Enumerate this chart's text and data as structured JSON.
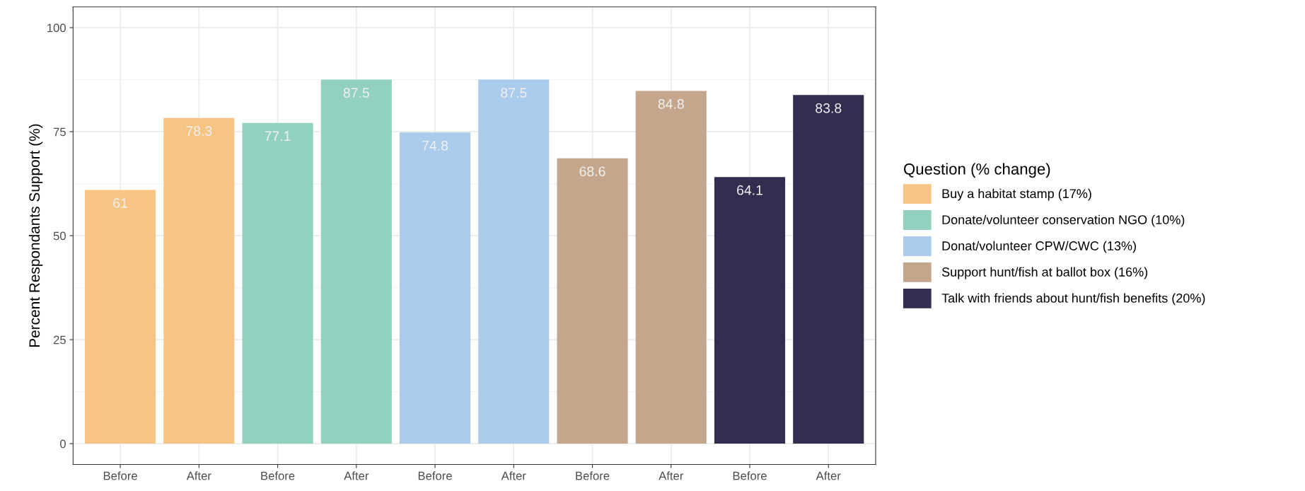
{
  "chart_data": {
    "type": "bar",
    "ylabel": "Percent Respondants Support (%)",
    "legend_title": "Question (% change)",
    "categories": [
      "Before",
      "After",
      "Before",
      "After",
      "Before",
      "After",
      "Before",
      "After",
      "Before",
      "After"
    ],
    "series": [
      {
        "name": "Buy a habitat stamp (17%)",
        "color": "#f6c483",
        "values": [
          61,
          78.3,
          null,
          null,
          null,
          null,
          null,
          null,
          null,
          null
        ]
      },
      {
        "name": "Donate/volunteer conservation NGO (10%)",
        "color": "#92d1bf",
        "values": [
          null,
          null,
          77.1,
          87.5,
          null,
          null,
          null,
          null,
          null,
          null
        ]
      },
      {
        "name": "Donat/volunteer CPW/CWC (13%)",
        "color": "#aacbeb",
        "values": [
          null,
          null,
          null,
          null,
          74.8,
          87.5,
          null,
          null,
          null,
          null
        ]
      },
      {
        "name": "Support hunt/fish at ballot box (16%)",
        "color": "#c4a68c",
        "values": [
          null,
          null,
          null,
          null,
          null,
          null,
          68.6,
          84.8,
          null,
          null
        ]
      },
      {
        "name": "Talk with friends about hunt/fish benefits (20%)",
        "color": "#332d50",
        "values": [
          null,
          null,
          null,
          null,
          null,
          null,
          null,
          null,
          64.1,
          83.8
        ]
      }
    ],
    "ylim": [
      -5,
      105
    ],
    "yticks": [
      0,
      25,
      50,
      75,
      100
    ],
    "grid": true,
    "legend": "right",
    "data_labels": true
  }
}
